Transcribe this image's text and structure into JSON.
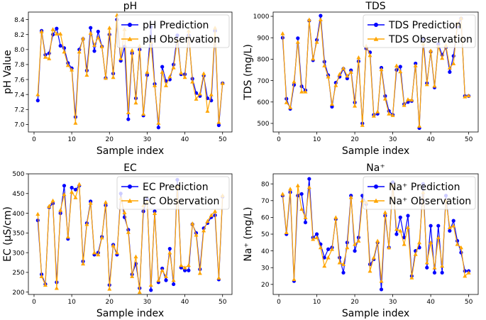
{
  "colors": {
    "prediction": "#0000ff",
    "observation": "#ffa500",
    "frame": "#000000"
  },
  "chart_data": [
    {
      "type": "line",
      "title": "pH",
      "xlabel": "Sample index",
      "ylabel": "pH Value",
      "xlim": [
        -1.5,
        52.5
      ],
      "ylim": [
        6.9,
        8.5
      ],
      "xticks": [
        0,
        10,
        20,
        30,
        40,
        50
      ],
      "yticks": [
        7.0,
        7.2,
        7.4,
        7.6,
        7.8,
        8.0,
        8.2,
        8.4
      ],
      "ytick_decimals": 1,
      "legend": "top-right",
      "x": [
        1,
        2,
        3,
        4,
        5,
        6,
        7,
        8,
        9,
        10,
        11,
        12,
        13,
        14,
        15,
        16,
        17,
        18,
        19,
        20,
        21,
        22,
        23,
        24,
        25,
        26,
        27,
        28,
        29,
        30,
        31,
        32,
        33,
        34,
        35,
        36,
        37,
        38,
        39,
        40,
        41,
        42,
        43,
        44,
        45,
        46,
        47,
        48,
        49,
        50
      ],
      "series": [
        {
          "name": "pH Prediction",
          "marker": "circle",
          "values": [
            7.32,
            8.25,
            7.93,
            7.95,
            8.2,
            8.28,
            8.05,
            8.02,
            7.82,
            7.75,
            7.1,
            8.0,
            8.14,
            7.72,
            8.29,
            7.98,
            8.24,
            8.04,
            7.62,
            8.2,
            7.68,
            8.4,
            7.85,
            8.04,
            7.07,
            7.95,
            7.35,
            8.0,
            7.12,
            7.66,
            8.3,
            7.54,
            6.96,
            7.77,
            7.58,
            7.6,
            7.8,
            8.19,
            7.67,
            7.67,
            8.19,
            7.61,
            7.42,
            7.38,
            7.65,
            7.35,
            7.32,
            8.25,
            6.99,
            7.55
          ]
        },
        {
          "name": "pH Observation",
          "marker": "triangle",
          "values": [
            7.4,
            8.24,
            7.9,
            7.88,
            8.27,
            8.21,
            8.21,
            7.97,
            7.79,
            7.73,
            7.02,
            7.97,
            8.15,
            7.66,
            8.22,
            8.06,
            8.16,
            8.04,
            7.62,
            8.29,
            7.63,
            8.46,
            7.88,
            8.27,
            7.16,
            7.99,
            7.29,
            8.05,
            7.14,
            7.7,
            8.1,
            7.52,
            7.02,
            7.7,
            7.52,
            7.64,
            7.76,
            8.12,
            7.69,
            7.63,
            8.25,
            7.57,
            7.34,
            7.41,
            7.68,
            7.18,
            7.4,
            8.29,
            7.03,
            7.55
          ]
        }
      ]
    },
    {
      "type": "line",
      "title": "TDS",
      "xlabel": "Sample index",
      "ylabel": "TDS (mg/L)",
      "xlim": [
        -1.5,
        52.5
      ],
      "ylim": [
        460,
        1020
      ],
      "xticks": [
        0,
        10,
        20,
        30,
        40,
        50
      ],
      "yticks": [
        500,
        600,
        700,
        800,
        900,
        1000
      ],
      "ytick_decimals": 0,
      "legend": "top-right",
      "x": [
        1,
        2,
        3,
        4,
        5,
        6,
        7,
        8,
        9,
        10,
        11,
        12,
        13,
        14,
        15,
        16,
        17,
        18,
        19,
        20,
        21,
        22,
        23,
        24,
        25,
        26,
        27,
        28,
        29,
        30,
        31,
        32,
        33,
        34,
        35,
        36,
        37,
        38,
        39,
        40,
        41,
        42,
        43,
        44,
        45,
        46,
        47,
        48,
        49,
        50
      ],
      "series": [
        {
          "name": "TDS Prediction",
          "marker": "circle",
          "values": [
            900,
            615,
            568,
            680,
            898,
            673,
            655,
            980,
            795,
            890,
            1003,
            788,
            725,
            578,
            690,
            718,
            755,
            710,
            748,
            598,
            790,
            500,
            850,
            832,
            540,
            545,
            760,
            628,
            558,
            540,
            750,
            765,
            590,
            600,
            605,
            780,
            478,
            895,
            688,
            835,
            668,
            870,
            820,
            855,
            740,
            815,
            952,
            990,
            628,
            628
          ]
        },
        {
          "name": "TDS Observation",
          "marker": "triangle",
          "values": [
            920,
            598,
            575,
            695,
            880,
            648,
            648,
            985,
            802,
            880,
            985,
            770,
            718,
            590,
            678,
            730,
            758,
            722,
            740,
            582,
            808,
            492,
            862,
            818,
            535,
            555,
            752,
            615,
            545,
            538,
            770,
            742,
            585,
            612,
            610,
            770,
            488,
            872,
            682,
            840,
            675,
            860,
            805,
            865,
            760,
            780,
            965,
            992,
            625,
            630
          ]
        }
      ]
    },
    {
      "type": "line",
      "title": "EC",
      "xlabel": "Sample index",
      "ylabel": "EC (μS/cm)",
      "xlim": [
        -1.5,
        52.5
      ],
      "ylim": [
        194,
        500
      ],
      "xticks": [
        0,
        10,
        20,
        30,
        40,
        50
      ],
      "yticks": [
        200,
        250,
        300,
        350,
        400,
        450,
        500
      ],
      "ytick_decimals": 0,
      "legend": "top-right",
      "x": [
        1,
        2,
        3,
        4,
        5,
        6,
        7,
        8,
        9,
        10,
        11,
        12,
        13,
        14,
        15,
        16,
        17,
        18,
        19,
        20,
        21,
        22,
        23,
        24,
        25,
        26,
        27,
        28,
        29,
        30,
        31,
        32,
        33,
        34,
        35,
        36,
        37,
        38,
        39,
        40,
        41,
        42,
        43,
        44,
        45,
        46,
        47,
        48,
        49,
        50
      ],
      "series": [
        {
          "name": "EC Prediction",
          "marker": "circle",
          "values": [
            382,
            245,
            220,
            415,
            425,
            225,
            400,
            470,
            335,
            465,
            460,
            470,
            278,
            375,
            430,
            295,
            300,
            340,
            420,
            218,
            320,
            295,
            450,
            390,
            358,
            245,
            272,
            210,
            405,
            435,
            205,
            405,
            225,
            260,
            230,
            310,
            220,
            485,
            262,
            255,
            255,
            372,
            350,
            258,
            362,
            375,
            390,
            395,
            232,
            442
          ]
        },
        {
          "name": "EC Observation",
          "marker": "triangle",
          "values": [
            398,
            240,
            218,
            418,
            432,
            210,
            408,
            448,
            340,
            454,
            440,
            474,
            272,
            372,
            426,
            300,
            295,
            338,
            428,
            208,
            318,
            300,
            438,
            402,
            352,
            240,
            290,
            200,
            420,
            430,
            218,
            400,
            230,
            255,
            240,
            300,
            230,
            468,
            268,
            262,
            268,
            374,
            345,
            248,
            356,
            380,
            395,
            405,
            236,
            445
          ]
        }
      ]
    },
    {
      "type": "line",
      "title": "Na⁺",
      "xlabel": "Sample index",
      "ylabel": "Na⁺ (mg/L)",
      "xlim": [
        -1.5,
        52.5
      ],
      "ylim": [
        14,
        86
      ],
      "xticks": [
        0,
        10,
        20,
        30,
        40,
        50
      ],
      "yticks": [
        20,
        30,
        40,
        50,
        60,
        70,
        80
      ],
      "ytick_decimals": 0,
      "legend": "top-right",
      "x": [
        1,
        2,
        3,
        4,
        5,
        6,
        7,
        8,
        9,
        10,
        11,
        12,
        13,
        14,
        15,
        16,
        17,
        18,
        19,
        20,
        21,
        22,
        23,
        24,
        25,
        26,
        27,
        28,
        29,
        30,
        31,
        32,
        33,
        34,
        35,
        36,
        37,
        38,
        39,
        40,
        41,
        42,
        43,
        44,
        45,
        46,
        47,
        48,
        49,
        50
      ],
      "series": [
        {
          "name": "Na⁺ Prediction",
          "marker": "circle",
          "values": [
            73,
            50,
            75,
            22,
            73,
            74,
            57,
            83,
            48,
            50,
            44,
            36,
            41,
            42,
            59,
            36,
            27,
            45,
            73,
            40,
            48,
            73,
            68,
            32,
            35,
            45,
            17,
            61,
            42,
            81,
            50,
            60,
            48,
            61,
            25,
            40,
            42,
            80,
            30,
            55,
            27,
            55,
            27,
            73,
            52,
            58,
            46,
            39,
            28,
            28
          ]
        },
        {
          "name": "Na⁺ Observation",
          "marker": "triangle",
          "values": [
            74,
            51,
            77,
            23,
            79,
            65,
            60,
            78,
            47,
            48,
            42,
            31,
            36,
            41,
            60,
            33,
            32,
            42,
            72,
            44,
            46,
            70,
            69,
            28,
            36,
            46,
            22,
            63,
            42,
            79,
            53,
            52,
            44,
            54,
            24,
            38,
            45,
            75,
            33,
            45,
            30,
            48,
            31,
            70,
            54,
            55,
            44,
            42,
            25,
            27
          ]
        }
      ]
    }
  ]
}
